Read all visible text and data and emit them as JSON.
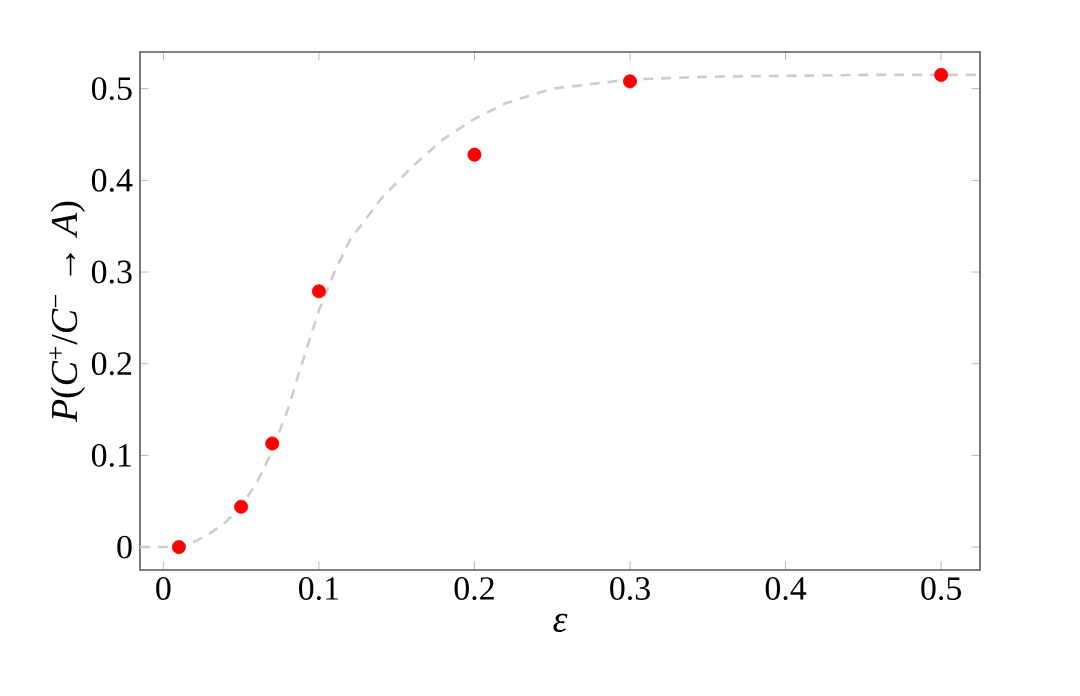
{
  "chart_data": {
    "type": "scatter",
    "xlabel": "*ε*",
    "ylabel": "*P*(*C*$^{+}$/*C*$^{−}$ → *A*)",
    "xlim": [
      -0.015,
      0.525
    ],
    "ylim": [
      -0.025,
      0.54
    ],
    "xticks": [
      0,
      0.1,
      0.2,
      0.3,
      0.4,
      0.5
    ],
    "yticks": [
      0,
      0.1,
      0.2,
      0.3,
      0.4,
      0.5
    ],
    "grid": false,
    "legend": false,
    "series": [
      {
        "type": "line",
        "color": "#cccccc",
        "line_style": "dashed",
        "marker": "none",
        "x": [
          -0.015,
          0,
          0.01,
          0.02,
          0.03,
          0.04,
          0.05,
          0.06,
          0.07,
          0.08,
          0.09,
          0.1,
          0.11,
          0.12,
          0.14,
          0.16,
          0.18,
          0.2,
          0.22,
          0.25,
          0.3,
          0.35,
          0.4,
          0.45,
          0.525
        ],
        "values": [
          0,
          0,
          0.001,
          0.006,
          0.015,
          0.027,
          0.045,
          0.07,
          0.105,
          0.15,
          0.205,
          0.258,
          0.3,
          0.335,
          0.38,
          0.415,
          0.445,
          0.467,
          0.484,
          0.5,
          0.51,
          0.513,
          0.514,
          0.515,
          0.515
        ]
      },
      {
        "type": "scatter",
        "color": "#ff0000",
        "marker": "circle",
        "x": [
          0.01,
          0.05,
          0.07,
          0.1,
          0.2,
          0.3,
          0.5
        ],
        "values": [
          0,
          0.044,
          0.113,
          0.279,
          0.428,
          0.508,
          0.515
        ]
      }
    ]
  }
}
